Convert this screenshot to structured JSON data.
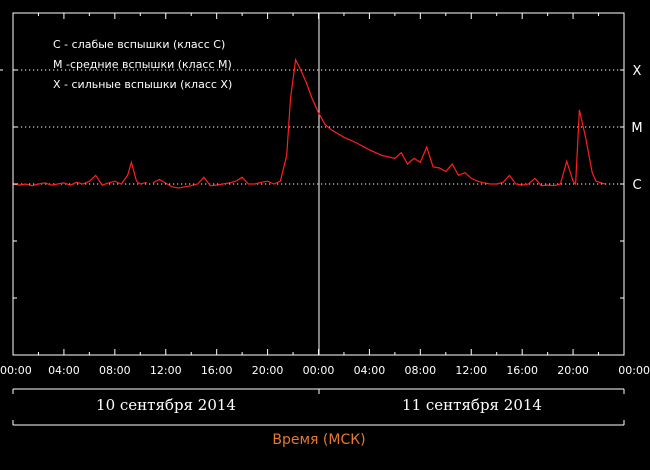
{
  "chart_data": {
    "type": "line",
    "legend": [
      "C - слабые вспышки (класс C)",
      "M -средние вспышки (класс M)",
      "X - сильные вспышки (класс X)"
    ],
    "class_levels": [
      {
        "label": "X",
        "level": 3
      },
      {
        "label": "M",
        "level": 2
      },
      {
        "label": "C",
        "level": 1
      }
    ],
    "x_ticks": [
      "00:00",
      "04:00",
      "08:00",
      "12:00",
      "16:00",
      "20:00",
      "00:00",
      "04:00",
      "08:00",
      "12:00",
      "16:00",
      "20:00",
      "00:00"
    ],
    "xlim_hours": [
      0,
      48
    ],
    "ylim_level": [
      -2,
      4
    ],
    "dates": [
      "10 сентября 2014",
      "11 сентября 2014"
    ],
    "xlabel": "Время (МСК)",
    "line_color": "#ff1e1e",
    "series": [
      {
        "gaps_after": [
          22
        ],
        "points": [
          [
            0.0,
            1.0
          ],
          [
            0.5,
            0.98
          ],
          [
            1.0,
            1.0
          ],
          [
            1.5,
            0.97
          ],
          [
            2.0,
            1.0
          ],
          [
            2.5,
            1.02
          ],
          [
            3.0,
            0.98
          ],
          [
            3.5,
            1.0
          ],
          [
            4.0,
            1.02
          ],
          [
            4.5,
            0.98
          ],
          [
            5.0,
            1.03
          ],
          [
            5.5,
            1.0
          ],
          [
            6.0,
            1.05
          ],
          [
            6.5,
            1.15
          ],
          [
            7.0,
            0.98
          ],
          [
            7.5,
            1.02
          ],
          [
            8.0,
            1.05
          ],
          [
            8.5,
            1.0
          ],
          [
            9.0,
            1.15
          ],
          [
            9.3,
            1.38
          ],
          [
            9.7,
            1.05
          ],
          [
            10.0,
            1.0
          ],
          [
            10.5,
            1.03
          ],
          [
            11.0,
            1.02
          ],
          [
            11.5,
            1.08
          ],
          [
            12.5,
            0.95
          ],
          [
            13.0,
            0.93
          ],
          [
            13.5,
            0.95
          ],
          [
            14.0,
            0.97
          ],
          [
            14.5,
            1.0
          ],
          [
            15.0,
            1.12
          ],
          [
            15.5,
            0.97
          ],
          [
            16.0,
            0.98
          ],
          [
            16.5,
            1.0
          ],
          [
            17.0,
            1.02
          ],
          [
            17.5,
            1.05
          ],
          [
            18.0,
            1.12
          ],
          [
            18.5,
            1.0
          ],
          [
            19.0,
            1.0
          ],
          [
            19.5,
            1.03
          ],
          [
            20.0,
            1.05
          ],
          [
            20.5,
            1.0
          ],
          [
            21.0,
            1.05
          ],
          [
            21.5,
            1.5
          ],
          [
            21.8,
            2.5
          ],
          [
            22.2,
            3.18
          ],
          [
            22.5,
            3.05
          ],
          [
            23.0,
            2.8
          ],
          [
            23.5,
            2.5
          ],
          [
            24.0,
            2.25
          ],
          [
            24.5,
            2.05
          ],
          [
            25.0,
            1.95
          ],
          [
            26.0,
            1.82
          ],
          [
            27.0,
            1.72
          ],
          [
            28.0,
            1.6
          ],
          [
            29.0,
            1.5
          ],
          [
            30.0,
            1.45
          ],
          [
            30.5,
            1.55
          ],
          [
            31.0,
            1.35
          ],
          [
            31.5,
            1.45
          ],
          [
            32.0,
            1.38
          ],
          [
            32.5,
            1.65
          ],
          [
            33.0,
            1.3
          ],
          [
            33.5,
            1.28
          ],
          [
            34.0,
            1.22
          ],
          [
            34.5,
            1.35
          ],
          [
            35.0,
            1.15
          ],
          [
            35.5,
            1.2
          ],
          [
            36.0,
            1.1
          ],
          [
            36.5,
            1.05
          ],
          [
            37.0,
            1.02
          ],
          [
            37.5,
            1.0
          ],
          [
            38.0,
            1.0
          ],
          [
            38.5,
            1.03
          ],
          [
            39.0,
            1.15
          ],
          [
            39.5,
            1.0
          ],
          [
            40.0,
            0.98
          ],
          [
            40.5,
            1.0
          ],
          [
            41.0,
            1.1
          ],
          [
            41.5,
            0.97
          ],
          [
            42.0,
            0.98
          ],
          [
            42.5,
            0.97
          ],
          [
            43.0,
            1.0
          ],
          [
            43.5,
            1.4
          ],
          [
            44.0,
            1.05
          ],
          [
            44.2,
            1.0
          ],
          [
            44.5,
            2.3
          ],
          [
            45.0,
            1.8
          ],
          [
            45.5,
            1.2
          ],
          [
            45.8,
            1.05
          ],
          [
            46.5,
            1.0
          ]
        ]
      }
    ]
  }
}
